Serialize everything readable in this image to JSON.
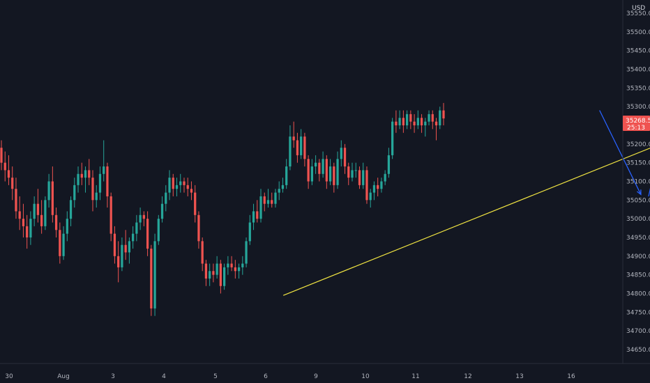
{
  "chart_data": {
    "type": "candlestick",
    "currency": "USD",
    "y_axis": {
      "ticks": [
        34650,
        34700,
        34750,
        34800,
        34850,
        34900,
        34950,
        35000,
        35050,
        35100,
        35150,
        35200,
        35250,
        35300,
        35350,
        35400,
        35450,
        35500,
        35550
      ],
      "tick_labels": [
        "34650.0",
        "34700.0",
        "34750.0",
        "34800.0",
        "34850.0",
        "34900.0",
        "34950.0",
        "35000.0",
        "35050.0",
        "35100.0",
        "35150.0",
        "35200.0",
        "35250.0",
        "35300.0",
        "35350.0",
        "35400.0",
        "35450.0",
        "35500.0",
        "35550.0"
      ],
      "range": [
        34610,
        35580
      ]
    },
    "x_axis": {
      "tick_labels": [
        "30",
        "Aug",
        "3",
        "4",
        "5",
        "6",
        "9",
        "10",
        "11",
        "12",
        "13",
        "16"
      ]
    },
    "last_price": {
      "value": "35268.5",
      "countdown": "25:13",
      "color": "#ef5350"
    },
    "colors": {
      "up": "#26a69a",
      "down": "#ef5350",
      "trendline": "#f0e442",
      "arrows": "#2962ff"
    },
    "candles": [
      [
        35190,
        35210,
        35130,
        35150
      ],
      [
        35150,
        35180,
        35100,
        35130
      ],
      [
        35130,
        35170,
        35090,
        35110
      ],
      [
        35110,
        35140,
        35050,
        35080
      ],
      [
        35080,
        35110,
        35000,
        35020
      ],
      [
        35020,
        35060,
        34970,
        35000
      ],
      [
        35000,
        35040,
        34950,
        34980
      ],
      [
        34980,
        35010,
        34920,
        34950
      ],
      [
        34950,
        35020,
        34930,
        35000
      ],
      [
        35000,
        35060,
        34980,
        35040
      ],
      [
        35040,
        35080,
        34990,
        35010
      ],
      [
        35010,
        35050,
        34960,
        34980
      ],
      [
        34980,
        35060,
        34970,
        35050
      ],
      [
        35050,
        35120,
        35030,
        35100
      ],
      [
        35100,
        35140,
        34990,
        35010
      ],
      [
        35010,
        35030,
        34950,
        34970
      ],
      [
        34970,
        34990,
        34880,
        34900
      ],
      [
        34900,
        34980,
        34890,
        34960
      ],
      [
        34960,
        35020,
        34940,
        35000
      ],
      [
        35000,
        35060,
        34980,
        35050
      ],
      [
        35050,
        35110,
        35030,
        35090
      ],
      [
        35090,
        35140,
        35070,
        35120
      ],
      [
        35120,
        35150,
        35090,
        35110
      ],
      [
        35110,
        35140,
        35070,
        35130
      ],
      [
        35130,
        35160,
        35090,
        35110
      ],
      [
        35110,
        35130,
        35020,
        35050
      ],
      [
        35050,
        35090,
        35030,
        35070
      ],
      [
        35070,
        35140,
        35050,
        35120
      ],
      [
        35120,
        35210,
        35100,
        35140
      ],
      [
        35140,
        35150,
        35030,
        35060
      ],
      [
        35060,
        35070,
        34940,
        34960
      ],
      [
        34960,
        34980,
        34880,
        34900
      ],
      [
        34900,
        34940,
        34830,
        34870
      ],
      [
        34870,
        34950,
        34860,
        34930
      ],
      [
        34930,
        34970,
        34890,
        34910
      ],
      [
        34910,
        34950,
        34880,
        34940
      ],
      [
        34940,
        34980,
        34920,
        34960
      ],
      [
        34960,
        35010,
        34940,
        34990
      ],
      [
        34990,
        35030,
        34970,
        35010
      ],
      [
        35010,
        35020,
        34980,
        35000
      ],
      [
        35000,
        35020,
        34900,
        34920
      ],
      [
        34920,
        34930,
        34740,
        34760
      ],
      [
        34760,
        34960,
        34740,
        34940
      ],
      [
        34940,
        35010,
        34930,
        35000
      ],
      [
        35000,
        35060,
        34990,
        35040
      ],
      [
        35040,
        35090,
        35020,
        35070
      ],
      [
        35070,
        35130,
        35050,
        35110
      ],
      [
        35110,
        35120,
        35060,
        35080
      ],
      [
        35080,
        35110,
        35060,
        35090
      ],
      [
        35090,
        35120,
        35070,
        35100
      ],
      [
        35100,
        35110,
        35070,
        35090
      ],
      [
        35090,
        35110,
        35060,
        35080
      ],
      [
        35080,
        35100,
        35050,
        35070
      ],
      [
        35070,
        35090,
        34990,
        35010
      ],
      [
        35010,
        35020,
        34920,
        34940
      ],
      [
        34940,
        34950,
        34860,
        34880
      ],
      [
        34880,
        34890,
        34820,
        34840
      ],
      [
        34840,
        34880,
        34820,
        34860
      ],
      [
        34860,
        34880,
        34830,
        34850
      ],
      [
        34850,
        34900,
        34840,
        34880
      ],
      [
        34880,
        34890,
        34800,
        34820
      ],
      [
        34820,
        34880,
        34810,
        34870
      ],
      [
        34870,
        34900,
        34850,
        34880
      ],
      [
        34880,
        34900,
        34860,
        34870
      ],
      [
        34870,
        34890,
        34840,
        34860
      ],
      [
        34860,
        34880,
        34840,
        34870
      ],
      [
        34870,
        34900,
        34850,
        34880
      ],
      [
        34880,
        34950,
        34870,
        34940
      ],
      [
        34940,
        35010,
        34930,
        34990
      ],
      [
        34990,
        35040,
        34970,
        35020
      ],
      [
        35020,
        35050,
        34990,
        35000
      ],
      [
        35000,
        35080,
        34990,
        35060
      ],
      [
        35060,
        35070,
        35020,
        35040
      ],
      [
        35040,
        35080,
        35030,
        35050
      ],
      [
        35050,
        35070,
        35030,
        35040
      ],
      [
        35040,
        35080,
        35030,
        35070
      ],
      [
        35070,
        35100,
        35050,
        35080
      ],
      [
        35080,
        35110,
        35070,
        35090
      ],
      [
        35090,
        35160,
        35080,
        35140
      ],
      [
        35140,
        35250,
        35130,
        35220
      ],
      [
        35220,
        35260,
        35190,
        35210
      ],
      [
        35210,
        35230,
        35150,
        35170
      ],
      [
        35170,
        35240,
        35160,
        35220
      ],
      [
        35220,
        35230,
        35140,
        35160
      ],
      [
        35160,
        35170,
        35080,
        35100
      ],
      [
        35100,
        35160,
        35090,
        35140
      ],
      [
        35140,
        35170,
        35120,
        35150
      ],
      [
        35150,
        35160,
        35100,
        35120
      ],
      [
        35120,
        35180,
        35110,
        35160
      ],
      [
        35160,
        35170,
        35080,
        35100
      ],
      [
        35100,
        35160,
        35090,
        35140
      ],
      [
        35140,
        35150,
        35070,
        35090
      ],
      [
        35090,
        35180,
        35080,
        35160
      ],
      [
        35160,
        35210,
        35140,
        35190
      ],
      [
        35190,
        35200,
        35120,
        35140
      ],
      [
        35140,
        35150,
        35090,
        35110
      ],
      [
        35110,
        35150,
        35100,
        35130
      ],
      [
        35130,
        35150,
        35110,
        35130
      ],
      [
        35130,
        35140,
        35080,
        35090
      ],
      [
        35090,
        35150,
        35080,
        35130
      ],
      [
        35130,
        35140,
        35040,
        35050
      ],
      [
        35050,
        35080,
        35030,
        35070
      ],
      [
        35070,
        35100,
        35050,
        35090
      ],
      [
        35090,
        35110,
        35060,
        35080
      ],
      [
        35080,
        35110,
        35070,
        35100
      ],
      [
        35100,
        35130,
        35090,
        35120
      ],
      [
        35120,
        35190,
        35110,
        35170
      ],
      [
        35170,
        35270,
        35160,
        35260
      ],
      [
        35260,
        35290,
        35230,
        35250
      ],
      [
        35250,
        35290,
        35240,
        35270
      ],
      [
        35270,
        35290,
        35230,
        35250
      ],
      [
        35250,
        35290,
        35240,
        35280
      ],
      [
        35280,
        35290,
        35240,
        35260
      ],
      [
        35260,
        35280,
        35230,
        35250
      ],
      [
        35250,
        35290,
        35240,
        35270
      ],
      [
        35270,
        35280,
        35230,
        35250
      ],
      [
        35250,
        35270,
        35220,
        35260
      ],
      [
        35260,
        35290,
        35250,
        35280
      ],
      [
        35280,
        35290,
        35240,
        35260
      ],
      [
        35260,
        35270,
        35210,
        35250
      ],
      [
        35250,
        35300,
        35240,
        35290
      ],
      [
        35290,
        35310,
        35250,
        35268.5
      ]
    ],
    "annotations": {
      "trendline": {
        "from": [
          5.35,
          34795
        ],
        "to": [
          15.7,
          35365
        ]
      },
      "projection_path_1": [
        [
          11.55,
          35290
        ],
        [
          12.35,
          35065
        ],
        [
          12.5,
          35060
        ],
        [
          12.7,
          35185
        ],
        [
          12.8,
          35175
        ]
      ],
      "projection_path_2": [
        [
          12.95,
          35170
        ],
        [
          13.9,
          34805
        ]
      ]
    }
  }
}
